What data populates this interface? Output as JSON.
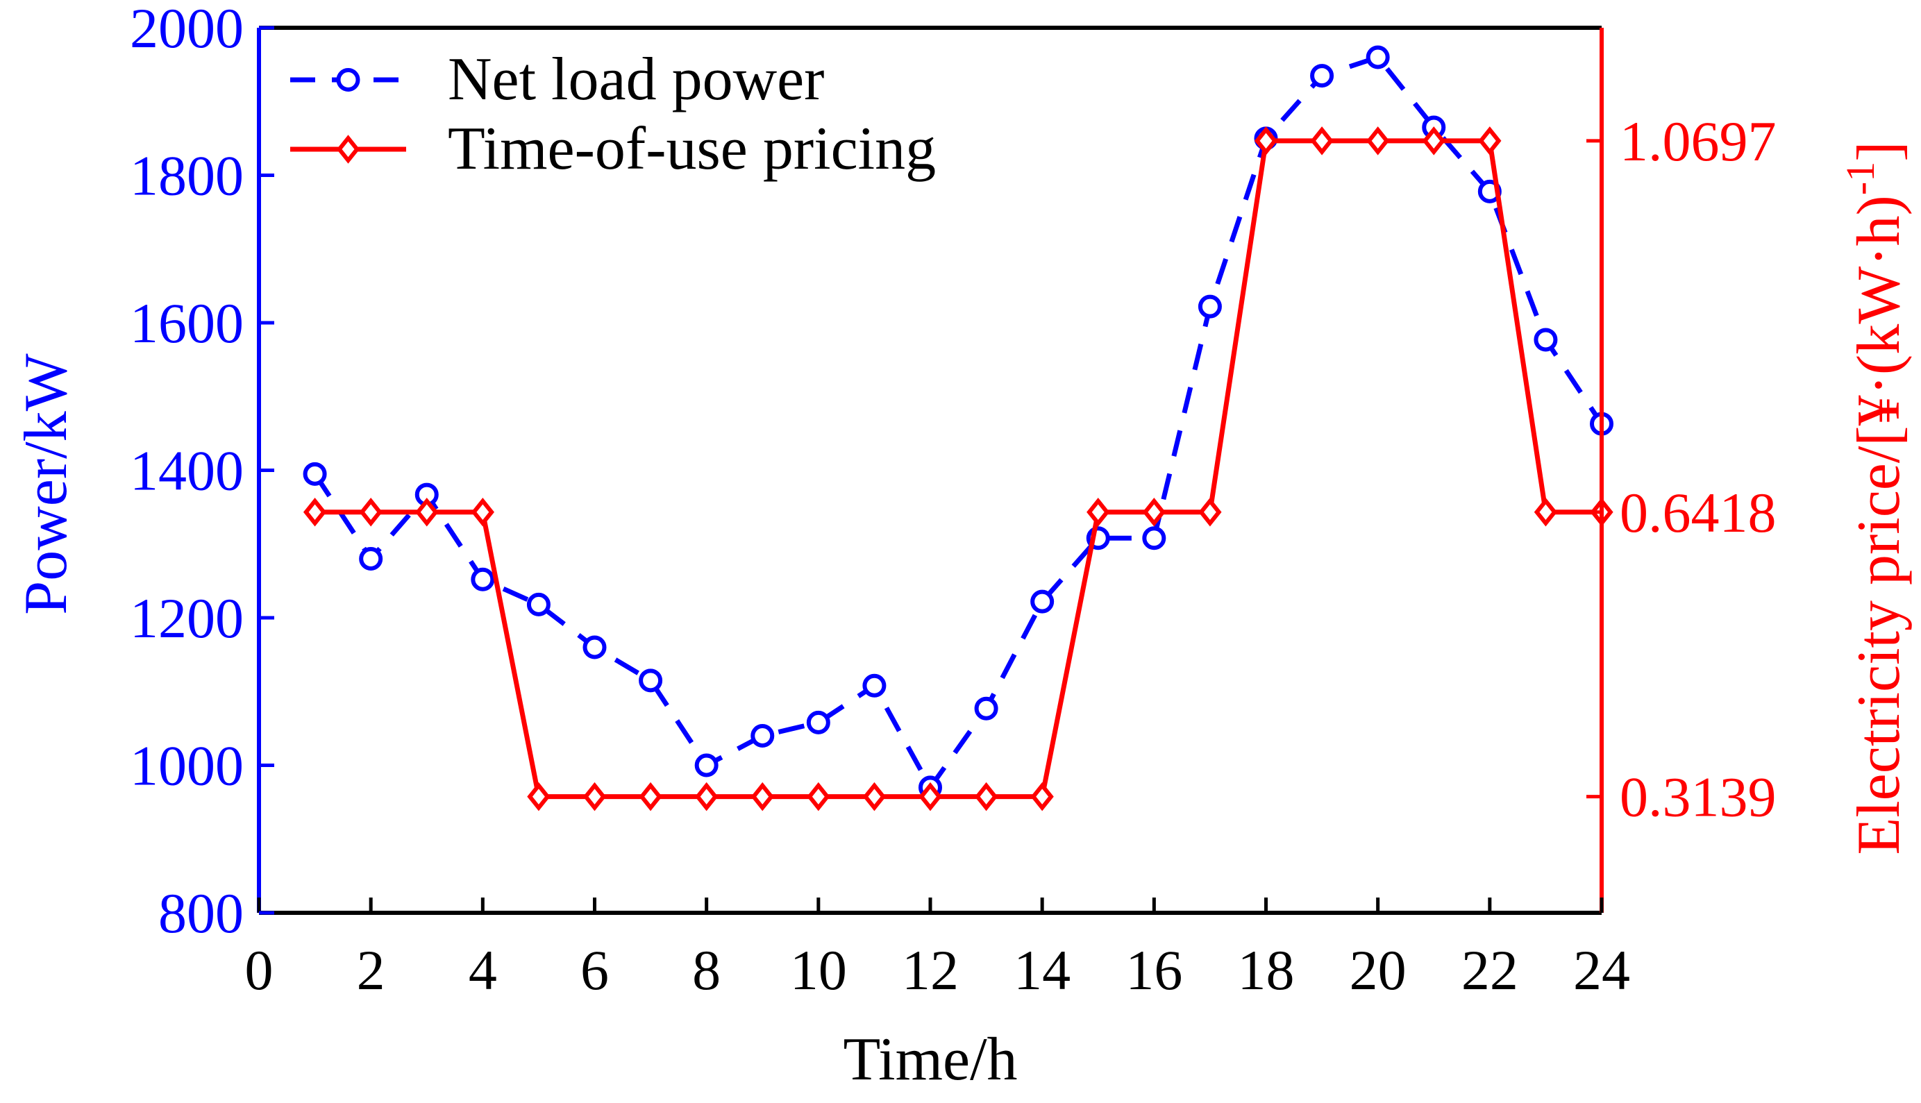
{
  "chart_data": {
    "type": "line",
    "title": "",
    "xlabel": "Time/h",
    "ylabel_left": "Power/kW",
    "ylabel_right": "Electricity price/[¥·(kW·h)",
    "ylabel_right_sup": "-1",
    "ylabel_right_close": "]",
    "xlim": [
      0,
      24
    ],
    "xticks": [
      "0",
      "2",
      "4",
      "6",
      "8",
      "10",
      "12",
      "14",
      "16",
      "18",
      "20",
      "22",
      "24"
    ],
    "ylim_left": [
      800,
      2000
    ],
    "yticks_left": [
      "800",
      "1000",
      "1200",
      "1400",
      "1600",
      "1800",
      "2000"
    ],
    "ylim_right": [
      0.18,
      1.2
    ],
    "yticks_right": [
      "0.3139",
      "0.6418",
      "1.0697"
    ],
    "legend": {
      "position": "top-left"
    },
    "grid": false,
    "colors": {
      "left_axis": "#0000ff",
      "right_axis": "#ff0000",
      "frame": "#000000"
    },
    "x": [
      1,
      2,
      3,
      4,
      5,
      6,
      7,
      8,
      9,
      10,
      11,
      12,
      13,
      14,
      15,
      16,
      17,
      18,
      19,
      20,
      21,
      22,
      23,
      24
    ],
    "series": [
      {
        "name": "Net load power",
        "axis": "left",
        "color": "#0000ff",
        "line_style": "dashed",
        "marker": "circle",
        "values": [
          1395,
          1280,
          1367,
          1252,
          1218,
          1160,
          1115,
          1000,
          1040,
          1058,
          1108,
          970,
          1077,
          1222,
          1308,
          1308,
          1622,
          1850,
          1935,
          1960,
          1865,
          1778,
          1577,
          1463
        ]
      },
      {
        "name": "Time-of-use pricing",
        "axis": "right",
        "color": "#ff0000",
        "line_style": "solid",
        "marker": "diamond",
        "values": [
          0.6418,
          0.6418,
          0.6418,
          0.6418,
          0.3139,
          0.3139,
          0.3139,
          0.3139,
          0.3139,
          0.3139,
          0.3139,
          0.3139,
          0.3139,
          0.3139,
          0.6418,
          0.6418,
          0.6418,
          1.0697,
          1.0697,
          1.0697,
          1.0697,
          1.0697,
          0.6418,
          0.6418
        ]
      }
    ]
  }
}
